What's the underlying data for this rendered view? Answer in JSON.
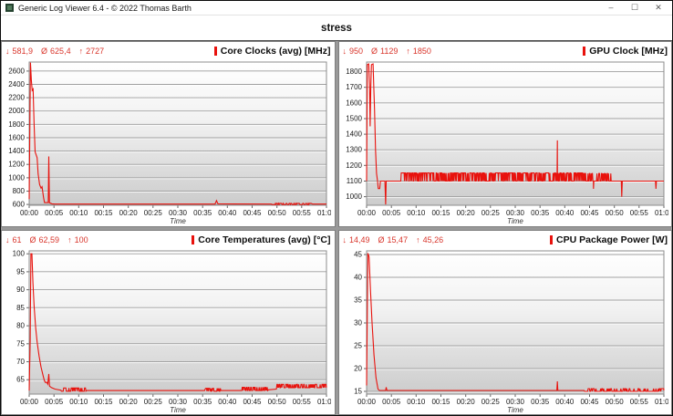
{
  "window": {
    "title": "Generic Log Viewer 6.4 - © 2022 Thomas Barth",
    "controls": {
      "minimize": "–",
      "maximize": "☐",
      "close": "✕"
    }
  },
  "tab": {
    "label": "stress"
  },
  "symbols": {
    "min": "↓",
    "avg": "Ø",
    "max": "↑"
  },
  "colors": {
    "series": "#e8120d",
    "stats_text": "#d9362c",
    "title_marker": "#e8120d"
  },
  "chart_data": [
    {
      "type": "line",
      "title": "Core Clocks (avg) [MHz]",
      "stats": {
        "min": "581,9",
        "avg": "625,4",
        "max": "2727"
      },
      "xlabel": "Time",
      "x_range": [
        0,
        60
      ],
      "x_ticks": [
        "00:00",
        "00:05",
        "00:10",
        "00:15",
        "00:20",
        "00:25",
        "00:30",
        "00:35",
        "00:40",
        "00:45",
        "00:50",
        "00:55",
        "01:00"
      ],
      "y_range": [
        588,
        2735
      ],
      "y_ticks": [
        600,
        800,
        1000,
        1200,
        1400,
        1600,
        1800,
        2000,
        2200,
        2400,
        2600
      ],
      "points": [
        [
          0,
          680
        ],
        [
          0.25,
          2727
        ],
        [
          0.45,
          2460
        ],
        [
          0.6,
          2310
        ],
        [
          0.8,
          2330
        ],
        [
          1.0,
          1800
        ],
        [
          1.2,
          1390
        ],
        [
          1.6,
          1300
        ],
        [
          1.8,
          1060
        ],
        [
          2.1,
          900
        ],
        [
          2.4,
          845
        ],
        [
          2.6,
          865
        ],
        [
          2.9,
          700
        ],
        [
          3.1,
          628
        ],
        [
          3.85,
          628
        ],
        [
          3.95,
          1320
        ],
        [
          4.08,
          625
        ],
        [
          4.6,
          610
        ],
        [
          5.2,
          606
        ],
        [
          37.5,
          606
        ],
        [
          37.8,
          658
        ],
        [
          38.1,
          608
        ],
        [
          48.9,
          606
        ],
        [
          57.2,
          606
        ],
        [
          60,
          606
        ]
      ],
      "noise_segments": [
        {
          "from": 49,
          "to": 57,
          "low": 599,
          "high": 617,
          "p": 0.45,
          "step": 0.12
        }
      ]
    },
    {
      "type": "line",
      "title": "GPU Clock [MHz]",
      "stats": {
        "min": "950",
        "avg": "1129",
        "max": "1850"
      },
      "xlabel": "Time",
      "x_range": [
        0,
        60
      ],
      "x_ticks": [
        "00:00",
        "00:05",
        "00:10",
        "00:15",
        "00:20",
        "00:25",
        "00:30",
        "00:35",
        "00:40",
        "00:45",
        "00:50",
        "00:55",
        "01:00"
      ],
      "y_range": [
        945,
        1862
      ],
      "y_ticks": [
        1000,
        1100,
        1200,
        1300,
        1400,
        1500,
        1600,
        1700,
        1800
      ],
      "points": [
        [
          0,
          1100
        ],
        [
          0.15,
          1845
        ],
        [
          0.45,
          1850
        ],
        [
          0.6,
          1700
        ],
        [
          0.72,
          1450
        ],
        [
          0.85,
          1700
        ],
        [
          0.98,
          1845
        ],
        [
          1.3,
          1850
        ],
        [
          1.45,
          1700
        ],
        [
          1.6,
          1560
        ],
        [
          1.8,
          1300
        ],
        [
          2.0,
          1150
        ],
        [
          2.2,
          1100
        ],
        [
          2.35,
          1052
        ],
        [
          2.65,
          1052
        ],
        [
          2.8,
          1100
        ],
        [
          3.7,
          1100
        ],
        [
          3.85,
          950
        ],
        [
          3.95,
          1100
        ],
        [
          6.9,
          1100
        ],
        [
          38.42,
          1115
        ],
        [
          38.5,
          1360
        ],
        [
          38.58,
          1115
        ],
        [
          44.55,
          1100
        ],
        [
          45.7,
          1100
        ],
        [
          45.8,
          1050
        ],
        [
          45.9,
          1100
        ],
        [
          50.2,
          1100
        ],
        [
          51.4,
          1100
        ],
        [
          51.5,
          1000
        ],
        [
          51.6,
          1100
        ],
        [
          58.3,
          1100
        ],
        [
          58.4,
          1050
        ],
        [
          58.5,
          1100
        ],
        [
          60,
          1100
        ]
      ],
      "noise_segments": [
        {
          "from": 7,
          "to": 44.5,
          "low": 1100,
          "high": 1152,
          "p": 0.55,
          "step": 0.08
        },
        {
          "from": 44.6,
          "to": 50,
          "low": 1100,
          "high": 1148,
          "p": 0.25,
          "step": 0.09
        }
      ]
    },
    {
      "type": "line",
      "title": "Core Temperatures (avg) [°C]",
      "stats": {
        "min": "61",
        "avg": "62,59",
        "max": "100"
      },
      "xlabel": "Time",
      "x_range": [
        0,
        60
      ],
      "x_ticks": [
        "00:00",
        "00:05",
        "00:10",
        "00:15",
        "00:20",
        "00:25",
        "00:30",
        "00:35",
        "00:40",
        "00:45",
        "00:50",
        "00:55",
        "01:00"
      ],
      "y_range": [
        61,
        100.8
      ],
      "y_ticks": [
        65,
        70,
        75,
        80,
        85,
        90,
        95,
        100
      ],
      "points": [
        [
          0,
          62
        ],
        [
          0.2,
          76
        ],
        [
          0.35,
          100
        ],
        [
          0.55,
          100
        ],
        [
          0.75,
          92
        ],
        [
          1.0,
          85.5
        ],
        [
          1.3,
          79.5
        ],
        [
          1.6,
          75.5
        ],
        [
          2.0,
          71.5
        ],
        [
          2.4,
          68.5
        ],
        [
          2.8,
          66.2
        ],
        [
          3.05,
          64.8
        ],
        [
          3.3,
          64.2
        ],
        [
          3.55,
          64.3
        ],
        [
          3.75,
          63.8
        ],
        [
          3.95,
          66.6
        ],
        [
          4.1,
          63.2
        ],
        [
          4.5,
          62.8
        ],
        [
          5.2,
          62.4
        ],
        [
          6.4,
          62.1
        ],
        [
          11.6,
          62
        ],
        [
          35.4,
          62
        ],
        [
          38.7,
          62
        ],
        [
          42.9,
          62
        ],
        [
          48.3,
          62.2
        ],
        [
          49.9,
          62.4
        ],
        [
          60,
          63.2
        ]
      ],
      "noise_segments": [
        {
          "from": 6.5,
          "to": 11.5,
          "low": 61.8,
          "high": 62.7,
          "p": 0.5,
          "step": 0.09
        },
        {
          "from": 35.6,
          "to": 38.6,
          "low": 61.8,
          "high": 62.6,
          "p": 0.4,
          "step": 0.09
        },
        {
          "from": 43.0,
          "to": 48.2,
          "low": 62.0,
          "high": 62.9,
          "p": 0.45,
          "step": 0.09
        },
        {
          "from": 50.0,
          "to": 60.0,
          "low": 62.8,
          "high": 63.7,
          "p": 0.5,
          "step": 0.09
        }
      ]
    },
    {
      "type": "line",
      "title": "CPU Package Power [W]",
      "stats": {
        "min": "14,49",
        "avg": "15,47",
        "max": "45,26"
      },
      "xlabel": "Time",
      "x_range": [
        0,
        60
      ],
      "x_ticks": [
        "00:00",
        "00:05",
        "00:10",
        "00:15",
        "00:20",
        "00:25",
        "00:30",
        "00:35",
        "00:40",
        "00:45",
        "00:50",
        "00:55",
        "01:00"
      ],
      "y_range": [
        14.4,
        45.8
      ],
      "y_ticks": [
        15,
        20,
        25,
        30,
        35,
        40,
        45
      ],
      "points": [
        [
          0,
          16.3
        ],
        [
          0.25,
          45.3
        ],
        [
          0.5,
          44.5
        ],
        [
          0.8,
          37
        ],
        [
          1.1,
          30
        ],
        [
          1.5,
          23
        ],
        [
          1.9,
          18
        ],
        [
          2.3,
          15.5
        ],
        [
          2.6,
          15.2
        ],
        [
          3.85,
          15.2
        ],
        [
          3.95,
          15.9
        ],
        [
          4.1,
          15.2
        ],
        [
          38.4,
          15.2
        ],
        [
          38.5,
          17.2
        ],
        [
          38.6,
          15.2
        ],
        [
          43.9,
          15.2
        ],
        [
          60,
          15.2
        ]
      ],
      "noise_segments": [
        {
          "from": 44,
          "to": 60,
          "low": 15.0,
          "high": 15.6,
          "p": 0.35,
          "step": 0.12
        }
      ]
    }
  ]
}
